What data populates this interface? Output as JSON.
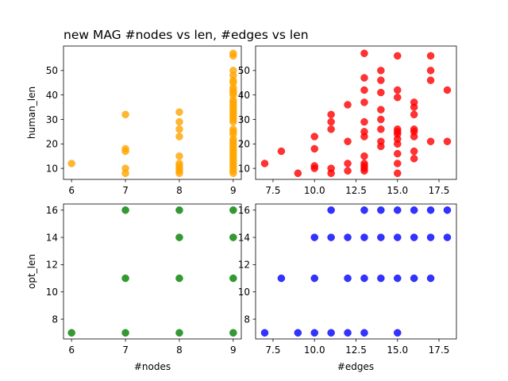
{
  "figure": {
    "title": "new MAG #nodes vs len, #edges vs len"
  },
  "chart_data": [
    {
      "type": "scatter",
      "panel": "top-left",
      "color": "#FFA500",
      "xlabel": "",
      "ylabel": "human_len",
      "xlim": [
        5.85,
        9.15
      ],
      "ylim": [
        5.5,
        60.0
      ],
      "xticks": [
        6,
        7,
        8,
        9
      ],
      "yticks": [
        10,
        20,
        30,
        40,
        50
      ],
      "points": [
        [
          6,
          12
        ],
        [
          7,
          8
        ],
        [
          7,
          10
        ],
        [
          7,
          17
        ],
        [
          7,
          18
        ],
        [
          7,
          32
        ],
        [
          8,
          8
        ],
        [
          8,
          9
        ],
        [
          8,
          10
        ],
        [
          8,
          11
        ],
        [
          8,
          12
        ],
        [
          8,
          15
        ],
        [
          8,
          23
        ],
        [
          8,
          26
        ],
        [
          8,
          29
        ],
        [
          8,
          33
        ],
        [
          9,
          8
        ],
        [
          9,
          9
        ],
        [
          9,
          10
        ],
        [
          9,
          11
        ],
        [
          9,
          12
        ],
        [
          9,
          13
        ],
        [
          9,
          14
        ],
        [
          9,
          15
        ],
        [
          9,
          16
        ],
        [
          9,
          17
        ],
        [
          9,
          18
        ],
        [
          9,
          19
        ],
        [
          9,
          20
        ],
        [
          9,
          21
        ],
        [
          9,
          22
        ],
        [
          9,
          24
        ],
        [
          9,
          25
        ],
        [
          9,
          26
        ],
        [
          9,
          29
        ],
        [
          9,
          30
        ],
        [
          9,
          31
        ],
        [
          9,
          32
        ],
        [
          9,
          33
        ],
        [
          9,
          34
        ],
        [
          9,
          35
        ],
        [
          9,
          36
        ],
        [
          9,
          37
        ],
        [
          9,
          38
        ],
        [
          9,
          40
        ],
        [
          9,
          41
        ],
        [
          9,
          42
        ],
        [
          9,
          43
        ],
        [
          9,
          45
        ],
        [
          9,
          46
        ],
        [
          9,
          48
        ],
        [
          9,
          50
        ],
        [
          9,
          56
        ],
        [
          9,
          57
        ]
      ]
    },
    {
      "type": "scatter",
      "panel": "top-right",
      "color": "#FF0000",
      "xlabel": "",
      "ylabel": "",
      "xlim": [
        6.45,
        18.55
      ],
      "ylim": [
        5.5,
        60.0
      ],
      "xticks": [
        7.5,
        10.0,
        12.5,
        15.0,
        17.5
      ],
      "yticks": [
        10,
        20,
        30,
        40,
        50
      ],
      "points": [
        [
          7,
          12
        ],
        [
          8,
          17
        ],
        [
          9,
          8
        ],
        [
          10,
          10
        ],
        [
          10,
          11
        ],
        [
          10,
          18
        ],
        [
          10,
          23
        ],
        [
          11,
          8
        ],
        [
          11,
          10
        ],
        [
          11,
          26
        ],
        [
          11,
          29
        ],
        [
          11,
          32
        ],
        [
          12,
          9
        ],
        [
          12,
          12
        ],
        [
          12,
          21
        ],
        [
          12,
          36
        ],
        [
          13,
          9
        ],
        [
          13,
          10
        ],
        [
          13,
          11
        ],
        [
          13,
          12
        ],
        [
          13,
          15
        ],
        [
          13,
          23
        ],
        [
          13,
          25
        ],
        [
          13,
          29
        ],
        [
          13,
          37
        ],
        [
          13,
          42
        ],
        [
          13,
          47
        ],
        [
          13,
          57
        ],
        [
          14,
          19
        ],
        [
          14,
          21
        ],
        [
          14,
          26
        ],
        [
          14,
          30
        ],
        [
          14,
          34
        ],
        [
          14,
          41
        ],
        [
          14,
          46
        ],
        [
          14,
          50
        ],
        [
          15,
          8
        ],
        [
          15,
          12
        ],
        [
          15,
          16
        ],
        [
          15,
          20
        ],
        [
          15,
          22
        ],
        [
          15,
          24
        ],
        [
          15,
          25
        ],
        [
          15,
          26
        ],
        [
          15,
          39
        ],
        [
          15,
          42
        ],
        [
          15,
          56
        ],
        [
          16,
          14
        ],
        [
          16,
          17
        ],
        [
          16,
          23
        ],
        [
          16,
          25
        ],
        [
          16,
          26
        ],
        [
          16,
          32
        ],
        [
          16,
          35
        ],
        [
          16,
          37
        ],
        [
          17,
          21
        ],
        [
          17,
          46
        ],
        [
          17,
          50
        ],
        [
          17,
          56
        ],
        [
          18,
          21
        ],
        [
          18,
          42
        ]
      ]
    },
    {
      "type": "scatter",
      "panel": "bottom-left",
      "color": "#008000",
      "xlabel": "#nodes",
      "ylabel": "opt_len",
      "xlim": [
        5.85,
        9.15
      ],
      "ylim": [
        6.55,
        16.45
      ],
      "xticks": [
        6,
        7,
        8,
        9
      ],
      "yticks": [
        8,
        10,
        12,
        14,
        16
      ],
      "points": [
        [
          6,
          7
        ],
        [
          7,
          7
        ],
        [
          7,
          11
        ],
        [
          7,
          16
        ],
        [
          8,
          7
        ],
        [
          8,
          11
        ],
        [
          8,
          14
        ],
        [
          8,
          16
        ],
        [
          9,
          7
        ],
        [
          9,
          11
        ],
        [
          9,
          14
        ],
        [
          9,
          16
        ]
      ]
    },
    {
      "type": "scatter",
      "panel": "bottom-right",
      "color": "#0000FF",
      "xlabel": "#edges",
      "ylabel": "",
      "xlim": [
        6.45,
        18.55
      ],
      "ylim": [
        6.55,
        16.45
      ],
      "xticks": [
        7.5,
        10.0,
        12.5,
        15.0,
        17.5
      ],
      "yticks": [
        8,
        10,
        12,
        14,
        16
      ],
      "points": [
        [
          7,
          7
        ],
        [
          8,
          11
        ],
        [
          9,
          7
        ],
        [
          10,
          7
        ],
        [
          10,
          11
        ],
        [
          10,
          14
        ],
        [
          11,
          7
        ],
        [
          11,
          14
        ],
        [
          11,
          16
        ],
        [
          12,
          7
        ],
        [
          12,
          11
        ],
        [
          12,
          14
        ],
        [
          13,
          7
        ],
        [
          13,
          11
        ],
        [
          13,
          14
        ],
        [
          13,
          16
        ],
        [
          14,
          11
        ],
        [
          14,
          14
        ],
        [
          14,
          16
        ],
        [
          15,
          7
        ],
        [
          15,
          11
        ],
        [
          15,
          14
        ],
        [
          15,
          16
        ],
        [
          16,
          11
        ],
        [
          16,
          14
        ],
        [
          16,
          16
        ],
        [
          17,
          11
        ],
        [
          17,
          14
        ],
        [
          17,
          16
        ],
        [
          18,
          14
        ],
        [
          18,
          16
        ]
      ]
    }
  ]
}
